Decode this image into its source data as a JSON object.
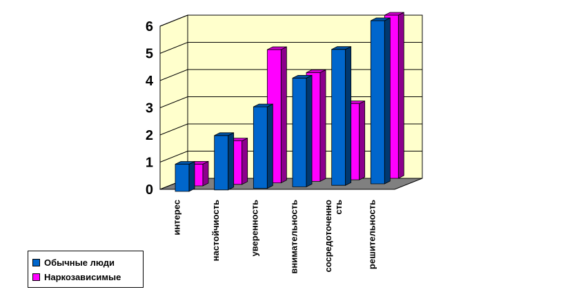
{
  "chart_data": {
    "type": "bar",
    "style": "3d-clustered-column",
    "categories": [
      "интерес",
      "настойчиость",
      "уверенность",
      "внимательность",
      "сосредоточенно\nсть",
      "решительность"
    ],
    "series": [
      {
        "name": "Обычные люди",
        "color": "#0066CC",
        "values": [
          1.0,
          2.0,
          3.0,
          4.0,
          5.0,
          6.0
        ]
      },
      {
        "name": "Наркозависимые",
        "color": "#FF00FF",
        "values": [
          0.8,
          1.6,
          4.9,
          4.0,
          2.8,
          6.0
        ]
      }
    ],
    "ylim": [
      0,
      6
    ],
    "yticks": [
      0,
      1,
      2,
      3,
      4,
      5,
      6
    ],
    "grid": true,
    "wall_color": "#FFFFCC",
    "floor_color": "#808080",
    "legend_position": "bottom-left"
  }
}
